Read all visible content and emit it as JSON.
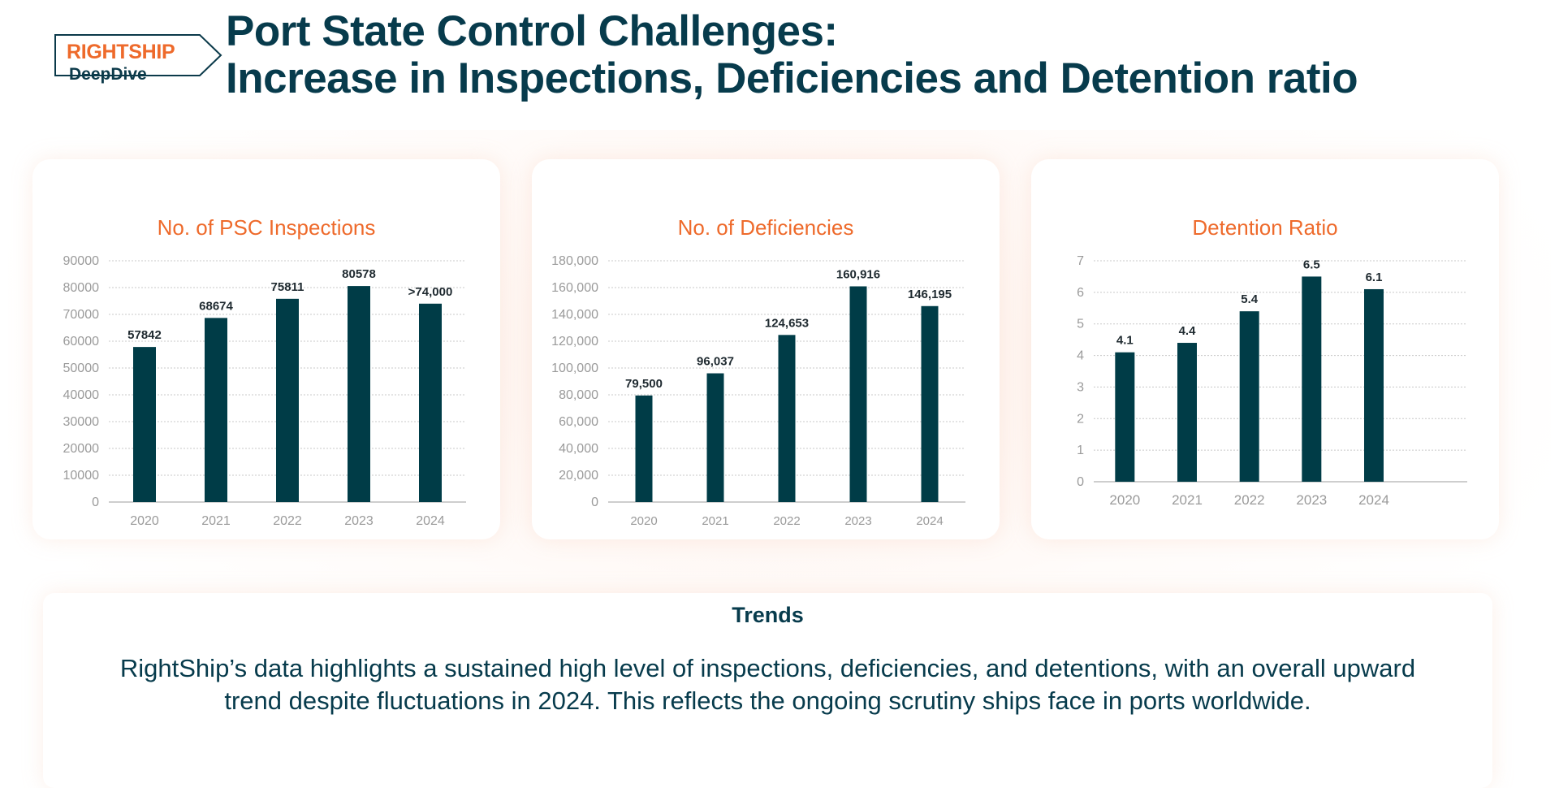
{
  "logo": {
    "top": "RIGHTSHIP",
    "bottom": "DeepDive"
  },
  "title": {
    "line1": "Port State Control Challenges:",
    "line2": "Increase in Inspections, Deficiencies and Detention ratio"
  },
  "colors": {
    "bar": "#003c47",
    "accent": "#ee6a2b",
    "text": "#073b4c",
    "axis": "#9a9a9a"
  },
  "chart_data": [
    {
      "type": "bar",
      "title": "No. of PSC Inspections",
      "categories": [
        "2020",
        "2021",
        "2022",
        "2023",
        "2024"
      ],
      "values": [
        57842,
        68674,
        75811,
        80578,
        74000
      ],
      "data_labels": [
        "57842",
        "68674",
        "75811",
        "80578",
        ">74,000"
      ],
      "ylim": [
        0,
        90000
      ],
      "yticks": [
        0,
        10000,
        20000,
        30000,
        40000,
        50000,
        60000,
        70000,
        80000,
        90000
      ],
      "ytick_labels": [
        "0",
        "10000",
        "20000",
        "30000",
        "40000",
        "50000",
        "60000",
        "70000",
        "80000",
        "90000"
      ],
      "grid": true
    },
    {
      "type": "bar",
      "title": "No. of Deficiencies",
      "categories": [
        "2020",
        "2021",
        "2022",
        "2023",
        "2024"
      ],
      "values": [
        79500,
        96037,
        124653,
        160916,
        146195
      ],
      "data_labels": [
        "79,500",
        "96,037",
        "124,653",
        "160,916",
        "146,195"
      ],
      "ylim": [
        0,
        180000
      ],
      "yticks": [
        0,
        20000,
        40000,
        60000,
        80000,
        100000,
        120000,
        140000,
        160000,
        180000
      ],
      "ytick_labels": [
        "0",
        "20,000",
        "40,000",
        "60,000",
        "80,000",
        "100,000",
        "120,000",
        "140,000",
        "160,000",
        "180,000"
      ],
      "grid": true
    },
    {
      "type": "bar",
      "title": "Detention Ratio",
      "categories": [
        "2020",
        "2021",
        "2022",
        "2023",
        "2024"
      ],
      "values": [
        4.1,
        4.4,
        5.4,
        6.5,
        6.1
      ],
      "data_labels": [
        "4.1",
        "4.4",
        "5.4",
        "6.5",
        "6.1"
      ],
      "ylim": [
        0,
        7
      ],
      "yticks": [
        0,
        1,
        2,
        3,
        4,
        5,
        6,
        7
      ],
      "ytick_labels": [
        "0",
        "1",
        "2",
        "3",
        "4",
        "5",
        "6",
        "7"
      ],
      "grid": true
    }
  ],
  "trends": {
    "heading": "Trends",
    "text": "RightShip’s data highlights a sustained high level of inspections, deficiencies, and detentions, with an overall upward trend despite fluctuations in 2024. This reflects the ongoing scrutiny ships face in ports worldwide."
  }
}
